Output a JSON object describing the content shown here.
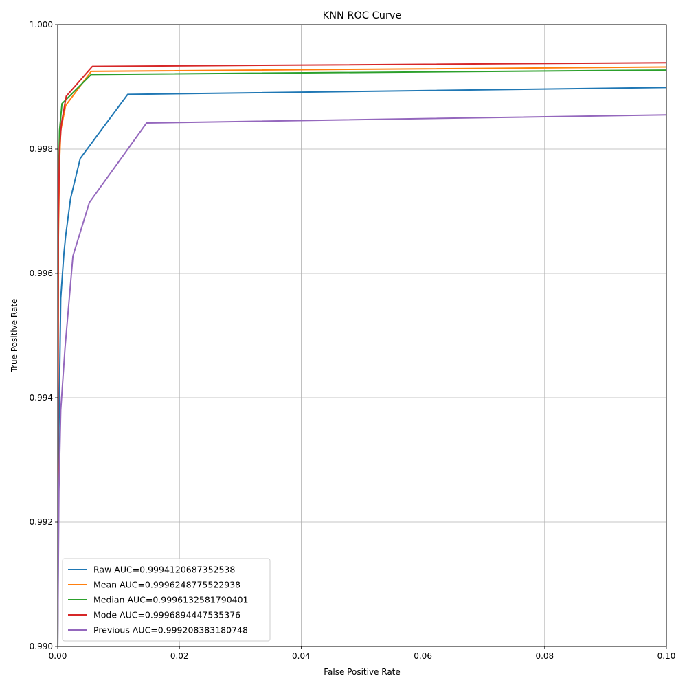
{
  "chart_data": {
    "type": "line",
    "title": "KNN ROC Curve",
    "xlabel": "False Positive Rate",
    "ylabel": "True Positive Rate",
    "xlim": [
      0,
      0.1
    ],
    "ylim": [
      0.99,
      1.0
    ],
    "x_ticks": [
      "0.00",
      "0.02",
      "0.04",
      "0.06",
      "0.08",
      "0.10"
    ],
    "y_ticks": [
      "0.990",
      "0.992",
      "0.994",
      "0.996",
      "0.998",
      "1.000"
    ],
    "x_tick_values": [
      0,
      0.02,
      0.04,
      0.06,
      0.08,
      0.1
    ],
    "y_tick_values": [
      0.99,
      0.992,
      0.994,
      0.996,
      0.998,
      1.0
    ],
    "grid": true,
    "legend_position": "bottom-left",
    "series": [
      {
        "name": "Raw AUC=0.9994120687352538",
        "color": "#1f77b4",
        "points": [
          [
            0.0,
            0.99
          ],
          [
            0.0002,
            0.9935
          ],
          [
            0.0005,
            0.9956
          ],
          [
            0.001,
            0.9963
          ],
          [
            0.0013,
            0.9966
          ],
          [
            0.0021,
            0.9972
          ],
          [
            0.0037,
            0.99785
          ],
          [
            0.0115,
            0.99888
          ],
          [
            0.1,
            0.99899
          ]
        ]
      },
      {
        "name": "Mean AUC=0.9996248775522938",
        "color": "#ff7f0e",
        "points": [
          [
            0.0,
            0.99
          ],
          [
            0.0001,
            0.9965
          ],
          [
            0.0003,
            0.9978
          ],
          [
            0.0005,
            0.9983
          ],
          [
            0.0013,
            0.9987
          ],
          [
            0.0055,
            0.99925
          ],
          [
            0.1,
            0.99932
          ]
        ]
      },
      {
        "name": "Median AUC=0.9996132581790401",
        "color": "#2ca02c",
        "points": [
          [
            0.0,
            0.99
          ],
          [
            0.0001,
            0.9972
          ],
          [
            0.0003,
            0.9983
          ],
          [
            0.0007,
            0.99873
          ],
          [
            0.0055,
            0.9992
          ],
          [
            0.1,
            0.99927
          ]
        ]
      },
      {
        "name": "Mode AUC=0.9996894447535376",
        "color": "#d62728",
        "points": [
          [
            0.0,
            0.99
          ],
          [
            0.0001,
            0.9968
          ],
          [
            0.0003,
            0.998
          ],
          [
            0.0006,
            0.9984
          ],
          [
            0.0014,
            0.99885
          ],
          [
            0.0057,
            0.99933
          ],
          [
            0.1,
            0.99939
          ]
        ]
      },
      {
        "name": "Previous AUC=0.999208383180748",
        "color": "#9467bd",
        "points": [
          [
            0.0,
            0.99
          ],
          [
            0.0002,
            0.9925
          ],
          [
            0.0005,
            0.9938
          ],
          [
            0.0012,
            0.9948
          ],
          [
            0.0025,
            0.99628
          ],
          [
            0.0052,
            0.99714
          ],
          [
            0.0146,
            0.99842
          ],
          [
            0.1,
            0.99855
          ]
        ]
      }
    ]
  }
}
